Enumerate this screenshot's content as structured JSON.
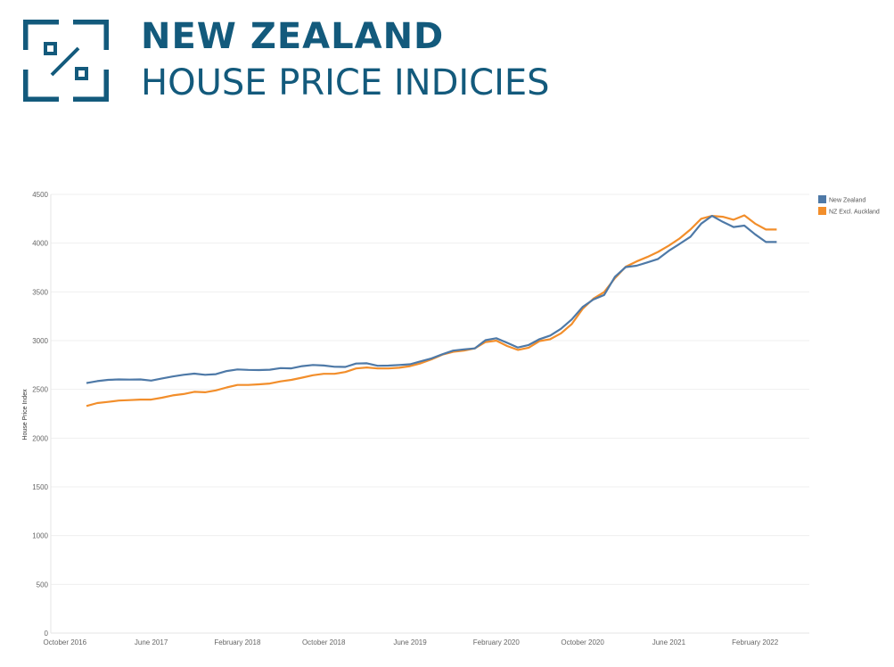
{
  "header": {
    "title": "NEW ZEALAND",
    "subtitle": "HOUSE PRICE INDICIES",
    "brand_color": "#135a7c"
  },
  "chart_data": {
    "type": "line",
    "ylabel": "House Price Index",
    "xlabel": "",
    "ylim": [
      0,
      4500
    ],
    "yticks": [
      0,
      500,
      1000,
      1500,
      2000,
      2500,
      3000,
      3500,
      4000,
      4500
    ],
    "x_tick_labels": [
      "October 2016",
      "June 2017",
      "February 2018",
      "October 2018",
      "June 2019",
      "February 2020",
      "October 2020",
      "June 2021",
      "February 2022"
    ],
    "x_tick_positions": [
      -2,
      6,
      14,
      22,
      30,
      38,
      46,
      54,
      62
    ],
    "grid": true,
    "legend_position": "top-right",
    "x": [
      "2016-12",
      "2017-01",
      "2017-02",
      "2017-03",
      "2017-04",
      "2017-05",
      "2017-06",
      "2017-07",
      "2017-08",
      "2017-09",
      "2017-10",
      "2017-11",
      "2017-12",
      "2018-01",
      "2018-02",
      "2018-03",
      "2018-04",
      "2018-05",
      "2018-06",
      "2018-07",
      "2018-08",
      "2018-09",
      "2018-10",
      "2018-11",
      "2018-12",
      "2019-01",
      "2019-02",
      "2019-03",
      "2019-04",
      "2019-05",
      "2019-06",
      "2019-07",
      "2019-08",
      "2019-09",
      "2019-10",
      "2019-11",
      "2019-12",
      "2020-01",
      "2020-02",
      "2020-03",
      "2020-04",
      "2020-05",
      "2020-06",
      "2020-07",
      "2020-08",
      "2020-09",
      "2020-10",
      "2020-11",
      "2020-12",
      "2021-01",
      "2021-02",
      "2021-03",
      "2021-04",
      "2021-05",
      "2021-06",
      "2021-07",
      "2021-08",
      "2021-09",
      "2021-10",
      "2021-11",
      "2021-12",
      "2022-01",
      "2022-02",
      "2022-03",
      "2022-04"
    ],
    "series": [
      {
        "name": "New Zealand",
        "color": "#4e79a7",
        "values": [
          2565,
          2585,
          2598,
          2602,
          2600,
          2602,
          2590,
          2612,
          2632,
          2650,
          2662,
          2650,
          2656,
          2688,
          2705,
          2700,
          2698,
          2702,
          2718,
          2716,
          2738,
          2750,
          2745,
          2732,
          2730,
          2765,
          2768,
          2742,
          2744,
          2750,
          2758,
          2788,
          2818,
          2860,
          2898,
          2910,
          2920,
          3005,
          3025,
          2978,
          2930,
          2955,
          3015,
          3052,
          3122,
          3218,
          3345,
          3422,
          3468,
          3655,
          3755,
          3768,
          3802,
          3838,
          3922,
          3992,
          4065,
          4200,
          4280,
          4218,
          4165,
          4180,
          4090,
          4012,
          4012
        ]
      },
      {
        "name": "NZ Excl. Auckland",
        "color": "#f28e2b",
        "values": [
          2330,
          2360,
          2372,
          2385,
          2390,
          2395,
          2395,
          2415,
          2438,
          2452,
          2475,
          2470,
          2490,
          2520,
          2545,
          2545,
          2552,
          2560,
          2582,
          2598,
          2620,
          2645,
          2660,
          2660,
          2678,
          2715,
          2725,
          2715,
          2715,
          2722,
          2738,
          2768,
          2808,
          2856,
          2886,
          2898,
          2920,
          2985,
          3000,
          2945,
          2905,
          2928,
          2995,
          3015,
          3075,
          3170,
          3325,
          3430,
          3498,
          3640,
          3758,
          3812,
          3858,
          3910,
          3975,
          4048,
          4140,
          4250,
          4280,
          4270,
          4240,
          4285,
          4200,
          4140,
          4140
        ]
      }
    ]
  }
}
